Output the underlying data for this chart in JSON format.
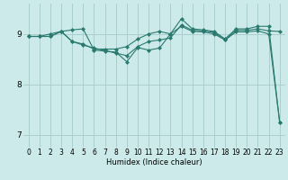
{
  "xlabel": "Humidex (Indice chaleur)",
  "bg_color": "#cceaea",
  "grid_color": "#aacfcf",
  "line_color": "#2a7a6f",
  "xlim": [
    -0.5,
    23.5
  ],
  "ylim": [
    6.75,
    9.6
  ],
  "yticks": [
    7,
    8,
    9
  ],
  "xticks": [
    0,
    1,
    2,
    3,
    4,
    5,
    6,
    7,
    8,
    9,
    10,
    11,
    12,
    13,
    14,
    15,
    16,
    17,
    18,
    19,
    20,
    21,
    22,
    23
  ],
  "series1_x": [
    0,
    1,
    2,
    3,
    4,
    5,
    6,
    7,
    8,
    9,
    10,
    11,
    12,
    13,
    14,
    15,
    16,
    17,
    18,
    19,
    20,
    21,
    22,
    23
  ],
  "series1_y": [
    8.95,
    8.95,
    8.95,
    9.05,
    8.85,
    8.78,
    8.72,
    8.67,
    8.62,
    8.57,
    8.75,
    8.85,
    8.88,
    8.92,
    9.18,
    9.07,
    9.06,
    9.03,
    8.88,
    9.07,
    9.07,
    9.1,
    9.06,
    9.05
  ],
  "series2_x": [
    0,
    1,
    2,
    3,
    4,
    5,
    6,
    7,
    8,
    9,
    10,
    11,
    12,
    13,
    14,
    15,
    16,
    17,
    18,
    19,
    20,
    21,
    22,
    23
  ],
  "series2_y": [
    8.95,
    8.95,
    9.0,
    9.05,
    8.85,
    8.8,
    8.7,
    8.7,
    8.7,
    8.75,
    8.9,
    9.0,
    9.05,
    9.0,
    9.3,
    9.1,
    9.08,
    9.05,
    8.9,
    9.1,
    9.1,
    9.15,
    9.15,
    7.25
  ],
  "series3_x": [
    0,
    1,
    2,
    3,
    4,
    5,
    6,
    7,
    8,
    9,
    10,
    11,
    12,
    13,
    14,
    15,
    16,
    17,
    18,
    19,
    20,
    21,
    22,
    23
  ],
  "series3_y": [
    8.95,
    8.95,
    8.95,
    9.05,
    9.08,
    9.1,
    8.68,
    8.66,
    8.64,
    8.45,
    8.73,
    8.68,
    8.72,
    9.0,
    9.15,
    9.05,
    9.04,
    9.0,
    8.88,
    9.04,
    9.04,
    9.06,
    9.0,
    7.25
  ],
  "marker_size": 2.5,
  "xlabel_fontsize": 6,
  "tick_fontsize": 5.5,
  "ytick_fontsize": 6.5
}
